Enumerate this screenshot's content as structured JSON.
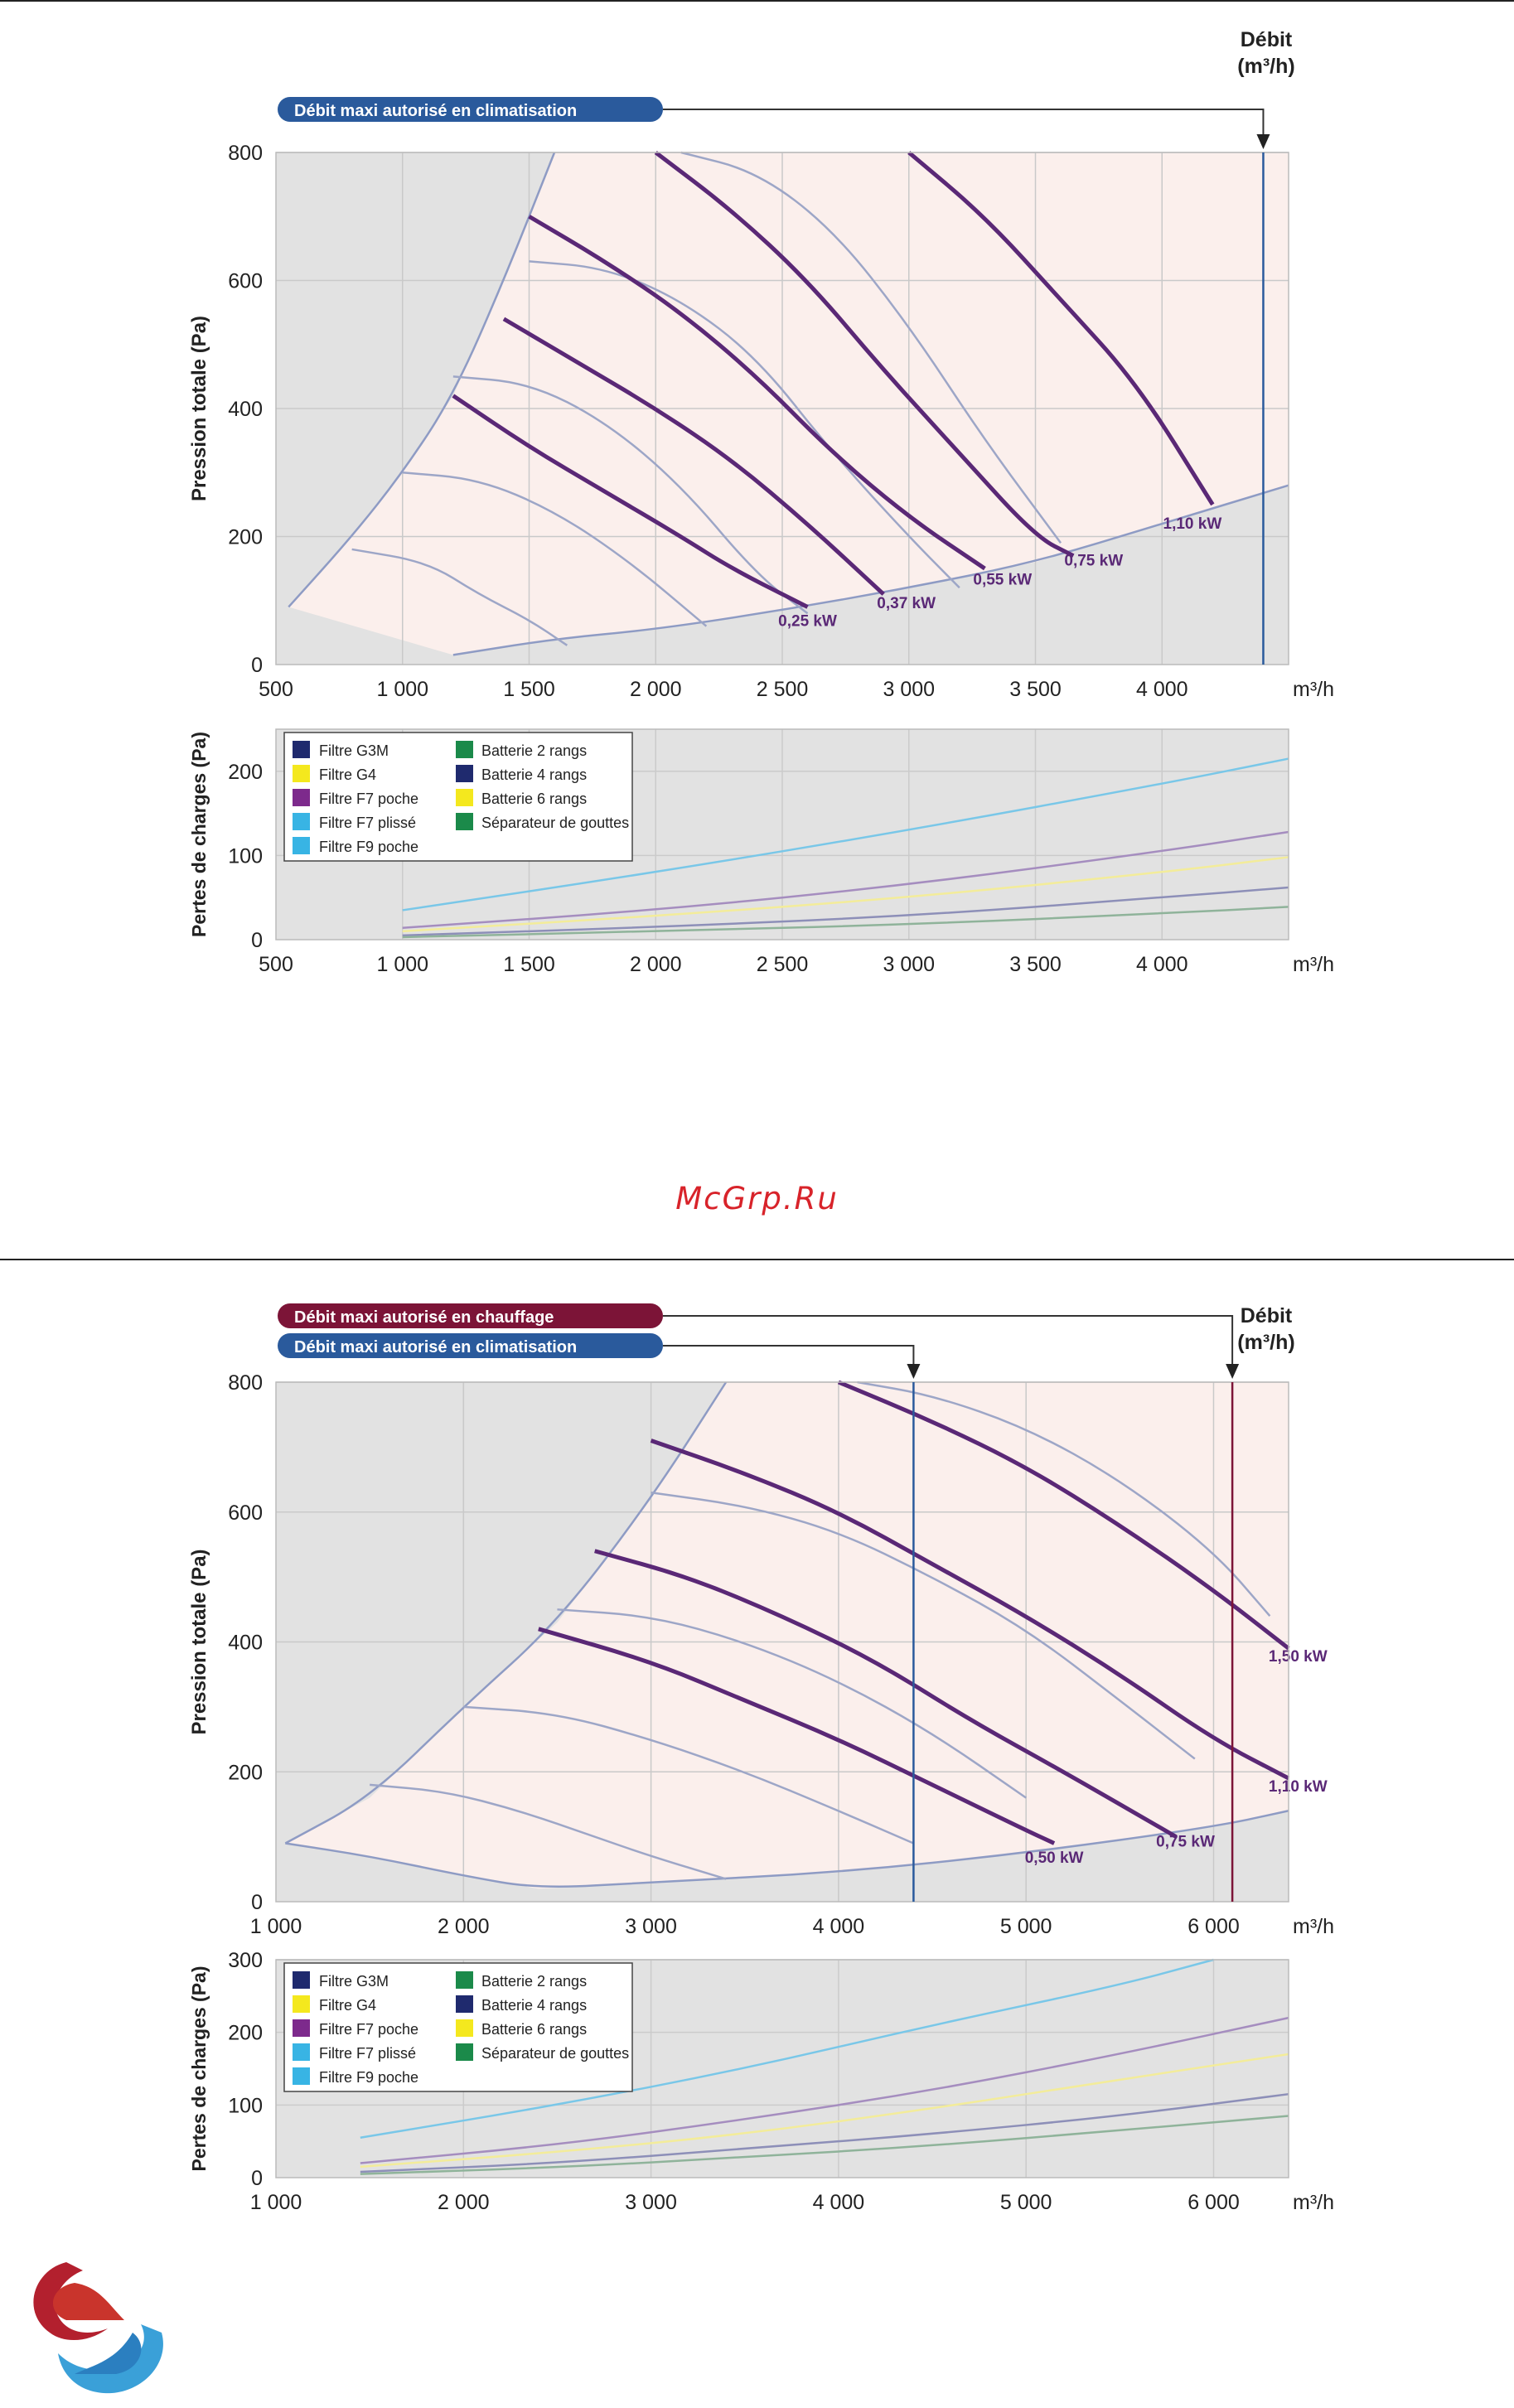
{
  "colors": {
    "accent_red": "#7c1437",
    "accent_blue": "#2a5a9c",
    "zone_pink": "#fbefec",
    "zone_grey": "#e2e2e2",
    "curve_purple": "#5a2876",
    "curve_thin": "#9da6c7"
  },
  "watermark": "McGrp.Ru",
  "logo": {
    "icon": "company-logo-icon"
  },
  "legend": {
    "col1": [
      {
        "label": "Filtre G3M",
        "color": "#1f2a6e"
      },
      {
        "label": "Filtre G4",
        "color": "#f4e81e"
      },
      {
        "label": "Filtre F7 poche",
        "color": "#7d2a8c"
      },
      {
        "label": "Filtre F7 plissé",
        "color": "#38b4e4"
      },
      {
        "label": "Filtre F9 poche",
        "color": "#38b4e4"
      }
    ],
    "col2": [
      {
        "label": "Batterie 2 rangs",
        "color": "#1b8a4a"
      },
      {
        "label": "Batterie 4 rangs",
        "color": "#1f2a6e"
      },
      {
        "label": "Batterie 6 rangs",
        "color": "#f4e81e"
      },
      {
        "label": "Séparateur de gouttes",
        "color": "#1b8a4a"
      }
    ]
  },
  "chart_data": [
    {
      "type": "line",
      "panel": "top-fan",
      "badges": [
        "Débit maxi autorisé en climatisation"
      ],
      "debit_label": [
        "Débit",
        "(m³/h)"
      ],
      "ylabel": "Pression totale (Pa)",
      "x_unit": "m³/h",
      "xlim": [
        500,
        4500
      ],
      "ylim": [
        0,
        800
      ],
      "xticks": [
        500,
        1000,
        1500,
        2000,
        2500,
        3000,
        3500,
        4000
      ],
      "xtick_labels": [
        "500",
        "1 000",
        "1 500",
        "2 000",
        "2 500",
        "3 000",
        "3 500",
        "4 000"
      ],
      "yticks": [
        0,
        200,
        400,
        600,
        800
      ],
      "ytick_labels": [
        "0",
        "200",
        "400",
        "600",
        "800"
      ],
      "max_flow_climatisation": 4400,
      "boundary_left": [
        [
          550,
          90
        ],
        [
          800,
          200
        ],
        [
          1000,
          300
        ],
        [
          1200,
          420
        ],
        [
          1400,
          600
        ],
        [
          1600,
          800
        ]
      ],
      "boundary_bottom": [
        [
          1200,
          15
        ],
        [
          1600,
          40
        ],
        [
          2000,
          55
        ],
        [
          2500,
          85
        ],
        [
          3000,
          120
        ],
        [
          3500,
          160
        ],
        [
          4000,
          220
        ],
        [
          4500,
          280
        ]
      ],
      "power_curves": [
        {
          "label": "0,25 kW",
          "points": [
            [
              1200,
              420
            ],
            [
              1500,
              340
            ],
            [
              1800,
              270
            ],
            [
              2100,
              200
            ],
            [
              2300,
              150
            ],
            [
              2600,
              90
            ]
          ],
          "label_at": [
            2600,
            60
          ]
        },
        {
          "label": "0,37 kW",
          "points": [
            [
              1400,
              540
            ],
            [
              1700,
              470
            ],
            [
              2000,
              400
            ],
            [
              2300,
              320
            ],
            [
              2600,
              220
            ],
            [
              2900,
              110
            ]
          ],
          "label_at": [
            2990,
            88
          ]
        },
        {
          "label": "0,55 kW",
          "points": [
            [
              1500,
              700
            ],
            [
              1800,
              630
            ],
            [
              2100,
              550
            ],
            [
              2400,
              450
            ],
            [
              2700,
              330
            ],
            [
              3000,
              230
            ],
            [
              3300,
              150
            ]
          ],
          "label_at": [
            3370,
            125
          ]
        },
        {
          "label": "0,75 kW",
          "points": [
            [
              2000,
              800
            ],
            [
              2300,
              710
            ],
            [
              2600,
              600
            ],
            [
              2900,
              460
            ],
            [
              3200,
              330
            ],
            [
              3500,
              200
            ],
            [
              3650,
              170
            ]
          ],
          "label_at": [
            3730,
            155
          ]
        },
        {
          "label": "1,10 kW",
          "points": [
            [
              3000,
              800
            ],
            [
              3300,
              700
            ],
            [
              3600,
              570
            ],
            [
              3900,
              440
            ],
            [
              4200,
              250
            ]
          ],
          "label_at": [
            4120,
            212
          ]
        }
      ],
      "efficiency_curves": [
        [
          [
            800,
            180
          ],
          [
            1100,
            160
          ],
          [
            1300,
            110
          ],
          [
            1500,
            70
          ],
          [
            1650,
            30
          ]
        ],
        [
          [
            1000,
            300
          ],
          [
            1300,
            290
          ],
          [
            1600,
            240
          ],
          [
            1900,
            160
          ],
          [
            2200,
            60
          ]
        ],
        [
          [
            1200,
            450
          ],
          [
            1500,
            440
          ],
          [
            1800,
            380
          ],
          [
            2100,
            280
          ],
          [
            2400,
            140
          ],
          [
            2600,
            80
          ]
        ],
        [
          [
            1500,
            630
          ],
          [
            1800,
            620
          ],
          [
            2100,
            570
          ],
          [
            2400,
            480
          ],
          [
            2700,
            330
          ],
          [
            3000,
            200
          ],
          [
            3200,
            120
          ]
        ],
        [
          [
            2100,
            800
          ],
          [
            2400,
            770
          ],
          [
            2700,
            680
          ],
          [
            3000,
            530
          ],
          [
            3300,
            350
          ],
          [
            3600,
            190
          ]
        ]
      ]
    },
    {
      "type": "line",
      "panel": "top-losses",
      "ylabel": "Pertes de charges (Pa)",
      "x_unit": "m³/h",
      "xlim": [
        500,
        4500
      ],
      "ylim": [
        0,
        250
      ],
      "xticks": [
        500,
        1000,
        1500,
        2000,
        2500,
        3000,
        3500,
        4000
      ],
      "xtick_labels": [
        "500",
        "1 000",
        "1 500",
        "2 000",
        "2 500",
        "3 000",
        "3 500",
        "4 000"
      ],
      "yticks": [
        0,
        100,
        200
      ],
      "ytick_labels": [
        "0",
        "100",
        "200"
      ],
      "series": [
        {
          "color": "#79c7e8",
          "points": [
            [
              1000,
              35
            ],
            [
              2000,
              80
            ],
            [
              3000,
              130
            ],
            [
              4000,
              185
            ],
            [
              4500,
              215
            ]
          ]
        },
        {
          "color": "#a58dbf",
          "points": [
            [
              1000,
              14
            ],
            [
              2000,
              35
            ],
            [
              3000,
              65
            ],
            [
              4000,
              105
            ],
            [
              4500,
              128
            ]
          ]
        },
        {
          "color": "#f3ec9a",
          "points": [
            [
              1000,
              10
            ],
            [
              2000,
              28
            ],
            [
              3000,
              50
            ],
            [
              4000,
              80
            ],
            [
              4500,
              98
            ]
          ]
        },
        {
          "color": "#8d8fb8",
          "points": [
            [
              1000,
              5
            ],
            [
              2000,
              15
            ],
            [
              3000,
              28
            ],
            [
              4000,
              50
            ],
            [
              4500,
              62
            ]
          ]
        },
        {
          "color": "#8fb39a",
          "points": [
            [
              1000,
              3
            ],
            [
              2000,
              10
            ],
            [
              3000,
              18
            ],
            [
              4000,
              31
            ],
            [
              4500,
              39
            ]
          ]
        }
      ]
    },
    {
      "type": "line",
      "panel": "bottom-fan",
      "badges": [
        "Débit maxi autorisé en chauffage",
        "Débit maxi autorisé en climatisation"
      ],
      "debit_label": [
        "Débit",
        "(m³/h)"
      ],
      "ylabel": "Pression totale (Pa)",
      "x_unit": "m³/h",
      "xlim": [
        1000,
        6400
      ],
      "ylim": [
        0,
        800
      ],
      "xticks": [
        1000,
        2000,
        3000,
        4000,
        5000,
        6000
      ],
      "xtick_labels": [
        "1 000",
        "2 000",
        "3 000",
        "4 000",
        "5 000",
        "6 000"
      ],
      "yticks": [
        0,
        200,
        400,
        600,
        800
      ],
      "ytick_labels": [
        "0",
        "200",
        "400",
        "600",
        "800"
      ],
      "max_flow_climatisation": 4400,
      "max_flow_chauffage": 6100,
      "boundary_left": [
        [
          1050,
          90
        ],
        [
          1500,
          160
        ],
        [
          2000,
          300
        ],
        [
          2500,
          430
        ],
        [
          3000,
          620
        ],
        [
          3400,
          800
        ]
      ],
      "boundary_bottom": [
        [
          1050,
          90
        ],
        [
          1500,
          70
        ],
        [
          2000,
          40
        ],
        [
          2400,
          20
        ],
        [
          3000,
          30
        ],
        [
          4000,
          45
        ],
        [
          5000,
          75
        ],
        [
          6000,
          115
        ],
        [
          6400,
          140
        ]
      ],
      "power_curves": [
        {
          "label": "0,50 kW",
          "points": [
            [
              2400,
              420
            ],
            [
              3000,
              370
            ],
            [
              3500,
              310
            ],
            [
              4000,
              250
            ],
            [
              4500,
              180
            ],
            [
              5000,
              110
            ],
            [
              5150,
              90
            ]
          ],
          "label_at": [
            5150,
            60
          ]
        },
        {
          "label": "0,75 kW",
          "points": [
            [
              2700,
              540
            ],
            [
              3200,
              500
            ],
            [
              3700,
              440
            ],
            [
              4200,
              370
            ],
            [
              4700,
              280
            ],
            [
              5200,
              200
            ],
            [
              5800,
              100
            ]
          ],
          "label_at": [
            5850,
            85
          ]
        },
        {
          "label": "1,10 kW",
          "points": [
            [
              3000,
              710
            ],
            [
              3500,
              660
            ],
            [
              4000,
              600
            ],
            [
              4500,
              520
            ],
            [
              5000,
              440
            ],
            [
              5500,
              350
            ],
            [
              6000,
              250
            ],
            [
              6400,
              190
            ]
          ],
          "label_at": [
            6450,
            170
          ]
        },
        {
          "label": "1,50 kW",
          "points": [
            [
              4000,
              800
            ],
            [
              4500,
              740
            ],
            [
              5000,
              670
            ],
            [
              5500,
              580
            ],
            [
              6000,
              480
            ],
            [
              6400,
              390
            ]
          ],
          "label_at": [
            6450,
            370
          ]
        }
      ],
      "efficiency_curves": [
        [
          [
            1500,
            180
          ],
          [
            1900,
            170
          ],
          [
            2300,
            140
          ],
          [
            2700,
            100
          ],
          [
            3000,
            70
          ],
          [
            3400,
            35
          ]
        ],
        [
          [
            2000,
            300
          ],
          [
            2500,
            290
          ],
          [
            3000,
            250
          ],
          [
            3500,
            200
          ],
          [
            4000,
            140
          ],
          [
            4400,
            90
          ]
        ],
        [
          [
            2500,
            450
          ],
          [
            3000,
            440
          ],
          [
            3500,
            400
          ],
          [
            4000,
            340
          ],
          [
            4500,
            260
          ],
          [
            5000,
            160
          ]
        ],
        [
          [
            3000,
            630
          ],
          [
            3500,
            610
          ],
          [
            4000,
            570
          ],
          [
            4500,
            500
          ],
          [
            5000,
            420
          ],
          [
            5500,
            310
          ],
          [
            5900,
            220
          ]
        ],
        [
          [
            4100,
            800
          ],
          [
            4500,
            780
          ],
          [
            5000,
            730
          ],
          [
            5500,
            650
          ],
          [
            6000,
            540
          ],
          [
            6300,
            440
          ]
        ]
      ]
    },
    {
      "type": "line",
      "panel": "bottom-losses",
      "ylabel": "Pertes de charges (Pa)",
      "x_unit": "m³/h",
      "xlim": [
        1000,
        6400
      ],
      "ylim": [
        0,
        300
      ],
      "xticks": [
        1000,
        2000,
        3000,
        4000,
        5000,
        6000
      ],
      "xtick_labels": [
        "1 000",
        "2 000",
        "3 000",
        "4 000",
        "5 000",
        "6 000"
      ],
      "yticks": [
        0,
        100,
        200,
        300
      ],
      "ytick_labels": [
        "0",
        "100",
        "200",
        "300"
      ],
      "series": [
        {
          "color": "#79c7e8",
          "points": [
            [
              1450,
              55
            ],
            [
              2500,
              100
            ],
            [
              3500,
              150
            ],
            [
              4500,
              210
            ],
            [
              5500,
              265
            ],
            [
              6000,
              300
            ]
          ]
        },
        {
          "color": "#a58dbf",
          "points": [
            [
              1450,
              20
            ],
            [
              2500,
              45
            ],
            [
              3500,
              80
            ],
            [
              4500,
              120
            ],
            [
              5500,
              170
            ],
            [
              6400,
              220
            ]
          ]
        },
        {
          "color": "#f3ec9a",
          "points": [
            [
              1450,
              15
            ],
            [
              2500,
              35
            ],
            [
              3500,
              60
            ],
            [
              4500,
              95
            ],
            [
              5500,
              135
            ],
            [
              6400,
              170
            ]
          ]
        },
        {
          "color": "#8d8fb8",
          "points": [
            [
              1450,
              8
            ],
            [
              2500,
              20
            ],
            [
              3500,
              40
            ],
            [
              4500,
              60
            ],
            [
              5500,
              85
            ],
            [
              6400,
              115
            ]
          ]
        },
        {
          "color": "#8fb39a",
          "points": [
            [
              1450,
              5
            ],
            [
              2500,
              14
            ],
            [
              3500,
              28
            ],
            [
              4500,
              44
            ],
            [
              5500,
              65
            ],
            [
              6400,
              85
            ]
          ]
        }
      ]
    }
  ]
}
